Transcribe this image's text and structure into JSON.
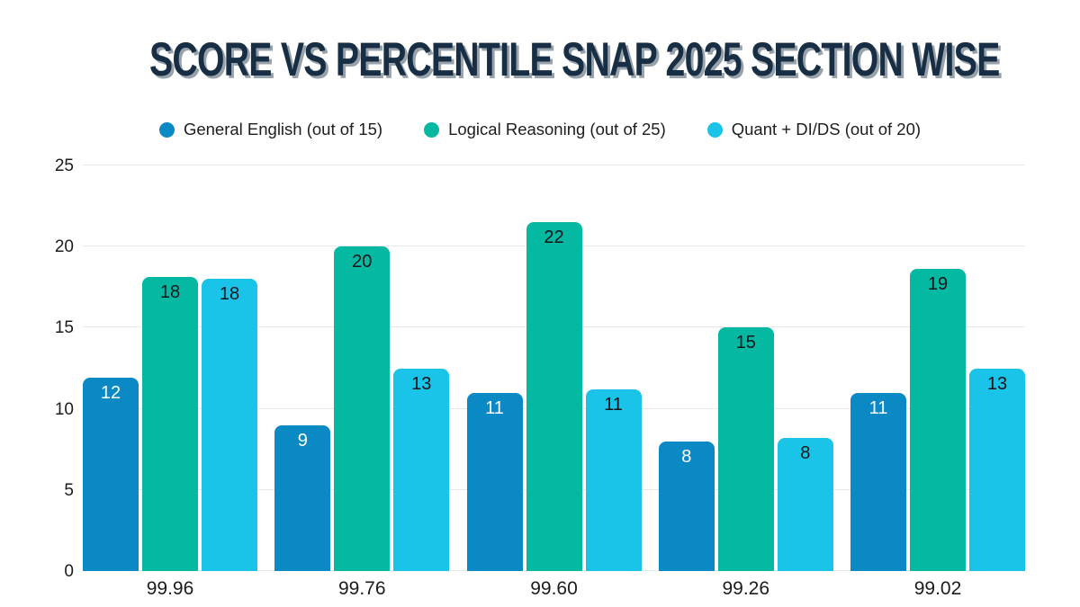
{
  "chart_data": {
    "type": "bar",
    "title": "SCORE VS PERCENTILE SNAP 2025 SECTION WISE",
    "xlabel": "",
    "ylabel": "",
    "categories": [
      "99.96",
      "99.76",
      "99.60",
      "99.26",
      "99.02"
    ],
    "series": [
      {
        "name": "General English (out of 15)",
        "color": "#0b89c4",
        "label_color": "#ffffff",
        "values": [
          12,
          9,
          11,
          8,
          11
        ],
        "drawn_values": [
          11.9,
          9,
          11,
          8,
          11
        ]
      },
      {
        "name": "Logical Reasoning (out of 25)",
        "color": "#04b8a2",
        "label_color": "#15151a",
        "values": [
          18,
          20,
          22,
          15,
          19
        ],
        "drawn_values": [
          18.1,
          20,
          21.5,
          15,
          18.6
        ]
      },
      {
        "name": "Quant + DI/DS (out of 20)",
        "color": "#1ac3e8",
        "label_color": "#15151a",
        "values": [
          18,
          13,
          11,
          8,
          13
        ],
        "drawn_values": [
          18,
          12.5,
          11.2,
          8.2,
          12.5
        ]
      }
    ],
    "ylim": [
      0,
      25
    ],
    "yticks": [
      0,
      5,
      10,
      15,
      20,
      25
    ],
    "grid": true,
    "legend_position": "top",
    "colors": {
      "title": "#172e44",
      "title_shadow": "#98a2ab",
      "grid": "#e9e9e9",
      "tick_label": "#1c1c1c",
      "background": "#ffffff"
    }
  }
}
